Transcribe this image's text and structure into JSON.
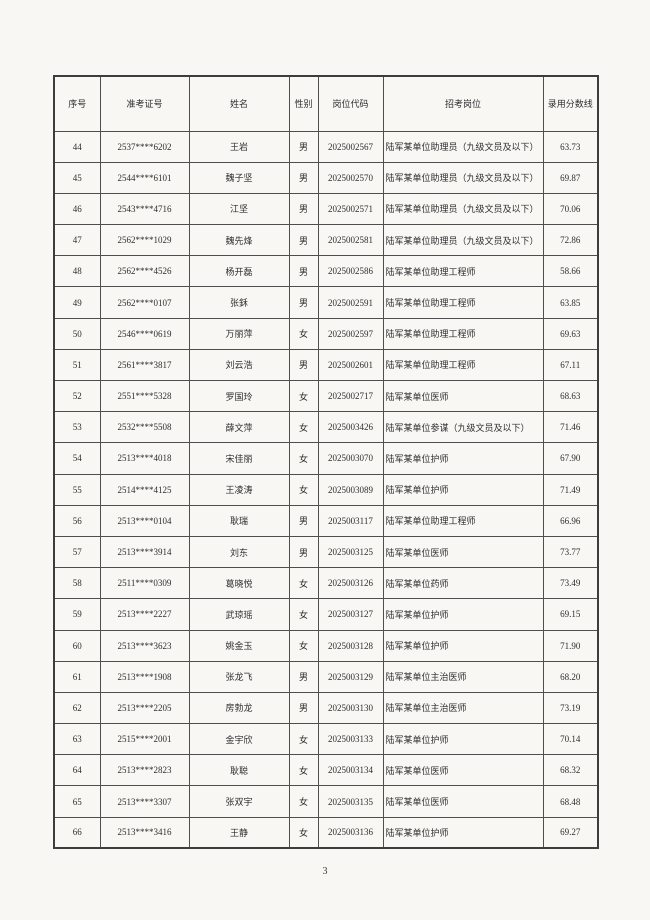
{
  "document": {
    "type": "recruitment-score-list-scan",
    "page_number": "3"
  },
  "colors": {
    "page_background": "#f8f7f4",
    "table_border": "#4e4e4e",
    "text": "#2e2e2e"
  },
  "table": {
    "columns": [
      {
        "key": "index",
        "label": "序号"
      },
      {
        "key": "ticket",
        "label": "准考证号"
      },
      {
        "key": "name",
        "label": "姓名"
      },
      {
        "key": "gender",
        "label": "性别"
      },
      {
        "key": "code",
        "label": "岗位代码"
      },
      {
        "key": "position",
        "label": "招考岗位"
      },
      {
        "key": "score",
        "label": "录用分数线"
      }
    ],
    "rows": [
      [
        "44",
        "2537****6202",
        "王岩",
        "男",
        "2025002567",
        "陆军某单位助理员（九级文员及以下）",
        "63.73"
      ],
      [
        "45",
        "2544****6101",
        "魏子坚",
        "男",
        "2025002570",
        "陆军某单位助理员（九级文员及以下）",
        "69.87"
      ],
      [
        "46",
        "2543****4716",
        "江坚",
        "男",
        "2025002571",
        "陆军某单位助理员（九级文员及以下）",
        "70.06"
      ],
      [
        "47",
        "2562****1029",
        "魏先烽",
        "男",
        "2025002581",
        "陆军某单位助理员（九级文员及以下）",
        "72.86"
      ],
      [
        "48",
        "2562****4526",
        "杨开磊",
        "男",
        "2025002586",
        "陆军某单位助理工程师",
        "58.66"
      ],
      [
        "49",
        "2562****0107",
        "张鉌",
        "男",
        "2025002591",
        "陆军某单位助理工程师",
        "63.85"
      ],
      [
        "50",
        "2546****0619",
        "万丽萍",
        "女",
        "2025002597",
        "陆军某单位助理工程师",
        "69.63"
      ],
      [
        "51",
        "2561****3817",
        "刘云浩",
        "男",
        "2025002601",
        "陆军某单位助理工程师",
        "67.11"
      ],
      [
        "52",
        "2551****5328",
        "罗国玲",
        "女",
        "2025002717",
        "陆军某单位医师",
        "68.63"
      ],
      [
        "53",
        "2532****5508",
        "薛文萍",
        "女",
        "2025003426",
        "陆军某单位参谋（九级文员及以下）",
        "71.46"
      ],
      [
        "54",
        "2513****4018",
        "宋佳丽",
        "女",
        "2025003070",
        "陆军某单位护师",
        "67.90"
      ],
      [
        "55",
        "2514****4125",
        "王凌涛",
        "女",
        "2025003089",
        "陆军某单位护师",
        "71.49"
      ],
      [
        "56",
        "2513****0104",
        "耿瑞",
        "男",
        "2025003117",
        "陆军某单位助理工程师",
        "66.96"
      ],
      [
        "57",
        "2513****3914",
        "刘东",
        "男",
        "2025003125",
        "陆军某单位医师",
        "73.77"
      ],
      [
        "58",
        "2511****0309",
        "葛晓悦",
        "女",
        "2025003126",
        "陆军某单位药师",
        "73.49"
      ],
      [
        "59",
        "2513****2227",
        "武琼瑶",
        "女",
        "2025003127",
        "陆军某单位护师",
        "69.15"
      ],
      [
        "60",
        "2513****3623",
        "姚金玉",
        "女",
        "2025003128",
        "陆军某单位护师",
        "71.90"
      ],
      [
        "61",
        "2513****1908",
        "张龙飞",
        "男",
        "2025003129",
        "陆军某单位主治医师",
        "68.20"
      ],
      [
        "62",
        "2513****2205",
        "房勃龙",
        "男",
        "2025003130",
        "陆军某单位主治医师",
        "73.19"
      ],
      [
        "63",
        "2515****2001",
        "金宇欣",
        "女",
        "2025003133",
        "陆军某单位护师",
        "70.14"
      ],
      [
        "64",
        "2513****2823",
        "耿聪",
        "女",
        "2025003134",
        "陆军某单位医师",
        "68.32"
      ],
      [
        "65",
        "2513****3307",
        "张双宇",
        "女",
        "2025003135",
        "陆军某单位医师",
        "68.48"
      ],
      [
        "66",
        "2513****3416",
        "王静",
        "女",
        "2025003136",
        "陆军某单位护师",
        "69.27"
      ]
    ]
  }
}
